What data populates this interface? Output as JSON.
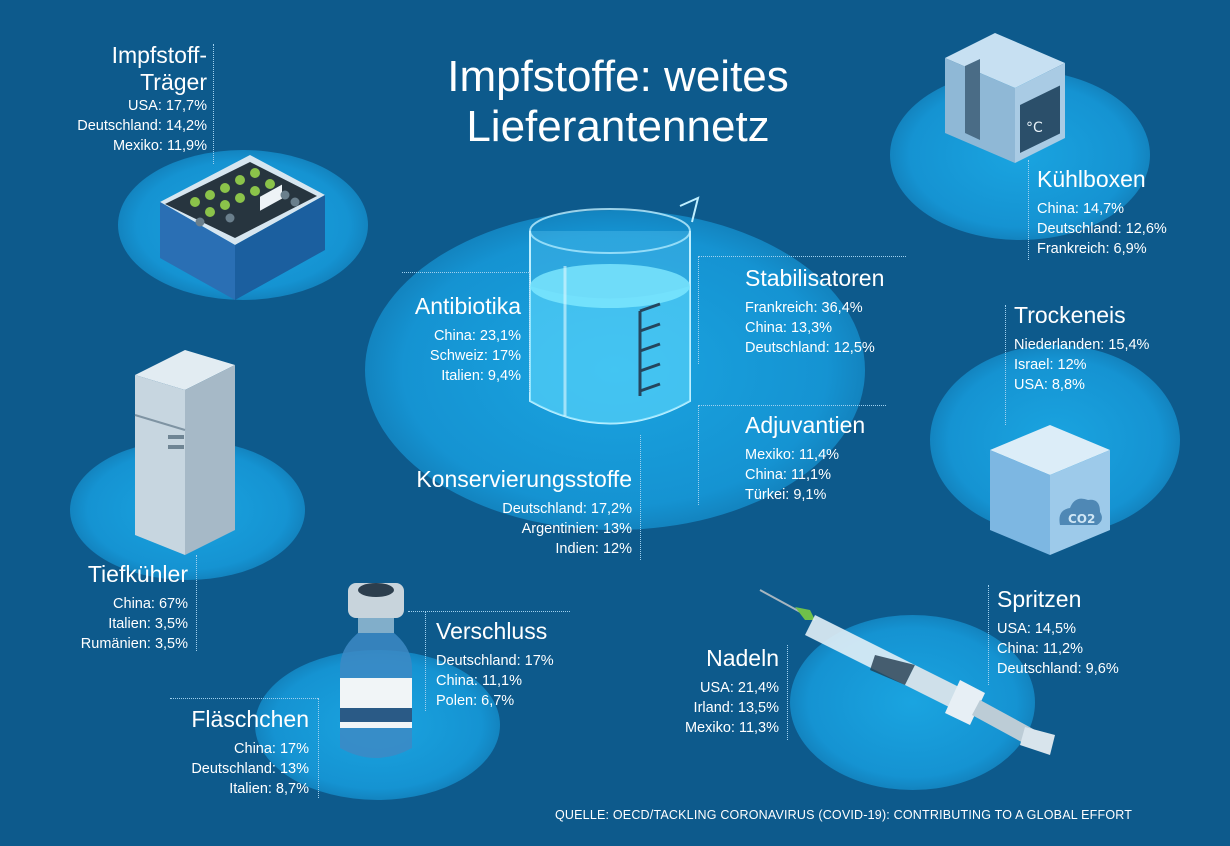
{
  "title": {
    "line1": "Impfstoffe: weites",
    "line2": "Lieferantennetz"
  },
  "source": "QUELLE: OECD/TACKLING CORONAVIRUS (COVID-19): CONTRIBUTING TO A GLOBAL  EFFORT",
  "categories": {
    "traeger": {
      "name1": "Impfstoff-",
      "name2": "Träger",
      "items": [
        "USA: 17,7%",
        "Deutschland: 14,2%",
        "Mexiko: 11,9%"
      ]
    },
    "kuehlboxen": {
      "name": "Kühlboxen",
      "items": [
        "China: 14,7%",
        "Deutschland: 12,6%",
        "Frankreich: 6,9%"
      ]
    },
    "antibiotika": {
      "name": "Antibiotika",
      "items": [
        "China: 23,1%",
        "Schweiz: 17%",
        "Italien: 9,4%"
      ]
    },
    "stabilisatoren": {
      "name": "Stabilisatoren",
      "items": [
        "Frankreich: 36,4%",
        "China: 13,3%",
        "Deutschland: 12,5%"
      ]
    },
    "trockeneis": {
      "name": "Trockeneis",
      "items": [
        "Niederlanden: 15,4%",
        "Israel: 12%",
        "USA: 8,8%"
      ]
    },
    "adjuvantien": {
      "name": "Adjuvantien",
      "items": [
        "Mexiko: 11,4%",
        "China: 11,1%",
        "Türkei: 9,1%"
      ]
    },
    "konservierung": {
      "name": "Konservierungsstoffe",
      "items": [
        "Deutschland: 17,2%",
        "Argentinien: 13%",
        "Indien: 12%"
      ]
    },
    "tiefkuehler": {
      "name": "Tiefkühler",
      "items": [
        "China: 67%",
        "Italien: 3,5%",
        "Rumänien: 3,5%"
      ]
    },
    "verschluss": {
      "name": "Verschluss",
      "items": [
        "Deutschland: 17%",
        "China: 11,1%",
        "Polen: 6,7%"
      ]
    },
    "spritzen": {
      "name": "Spritzen",
      "items": [
        "USA: 14,5%",
        "China: 11,2%",
        "Deutschland: 9,6%"
      ]
    },
    "nadeln": {
      "name": "Nadeln",
      "items": [
        "USA: 21,4%",
        "Irland: 13,5%",
        "Mexiko: 11,3%"
      ]
    },
    "flaeschchen": {
      "name": "Fläschchen",
      "items": [
        "China: 17%",
        "Deutschland: 13%",
        "Italien: 8,7%"
      ]
    }
  },
  "icons": [
    "vaccine-carrier-icon",
    "cooling-box-icon",
    "beaker-icon",
    "freezer-icon",
    "dry-ice-icon",
    "vial-icon",
    "syringe-icon"
  ],
  "colors": {
    "background": "#0d5a8c",
    "glow": "#1593d2",
    "text": "#ffffff"
  }
}
